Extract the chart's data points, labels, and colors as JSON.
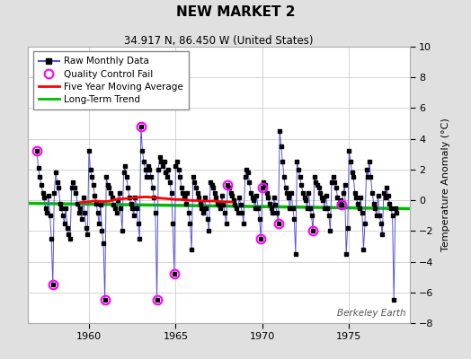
{
  "title": "NEW MARKET 2",
  "subtitle": "34.917 N, 86.450 W (United States)",
  "ylabel": "Temperature Anomaly (°C)",
  "watermark": "Berkeley Earth",
  "ylim": [
    -8,
    10
  ],
  "xlim": [
    1956.5,
    1978.5
  ],
  "xticks": [
    1960,
    1965,
    1970,
    1975
  ],
  "yticks": [
    -8,
    -6,
    -4,
    -2,
    0,
    2,
    4,
    6,
    8,
    10
  ],
  "bg_color": "#e0e0e0",
  "plot_bg_color": "#ffffff",
  "monthly_color": "#5555dd",
  "marker_color": "#000000",
  "qc_color": "#ff00ff",
  "moving_avg_color": "#ff0000",
  "trend_color": "#00bb00",
  "raw_monthly": [
    [
      1957.0,
      3.2
    ],
    [
      1957.083,
      2.1
    ],
    [
      1957.167,
      1.5
    ],
    [
      1957.25,
      1.0
    ],
    [
      1957.333,
      0.5
    ],
    [
      1957.417,
      0.2
    ],
    [
      1957.5,
      -0.5
    ],
    [
      1957.583,
      -0.8
    ],
    [
      1957.667,
      0.3
    ],
    [
      1957.75,
      -1.0
    ],
    [
      1957.833,
      -2.5
    ],
    [
      1957.917,
      -5.5
    ],
    [
      1958.0,
      0.5
    ],
    [
      1958.083,
      1.8
    ],
    [
      1958.167,
      1.2
    ],
    [
      1958.25,
      0.8
    ],
    [
      1958.333,
      -0.2
    ],
    [
      1958.417,
      -0.5
    ],
    [
      1958.5,
      -1.0
    ],
    [
      1958.583,
      -1.5
    ],
    [
      1958.667,
      -0.5
    ],
    [
      1958.75,
      -1.8
    ],
    [
      1958.833,
      -2.2
    ],
    [
      1958.917,
      -2.5
    ],
    [
      1959.0,
      0.8
    ],
    [
      1959.083,
      1.2
    ],
    [
      1959.167,
      0.8
    ],
    [
      1959.25,
      0.5
    ],
    [
      1959.333,
      -0.2
    ],
    [
      1959.417,
      -0.8
    ],
    [
      1959.5,
      -0.5
    ],
    [
      1959.583,
      -1.2
    ],
    [
      1959.667,
      0.2
    ],
    [
      1959.75,
      -0.8
    ],
    [
      1959.833,
      -1.8
    ],
    [
      1959.917,
      -2.2
    ],
    [
      1960.0,
      3.2
    ],
    [
      1960.083,
      2.0
    ],
    [
      1960.167,
      1.5
    ],
    [
      1960.25,
      1.0
    ],
    [
      1960.333,
      0.3
    ],
    [
      1960.417,
      -0.2
    ],
    [
      1960.5,
      -0.8
    ],
    [
      1960.583,
      -1.5
    ],
    [
      1960.667,
      -0.3
    ],
    [
      1960.75,
      -2.0
    ],
    [
      1960.833,
      -2.8
    ],
    [
      1960.917,
      -6.5
    ],
    [
      1961.0,
      1.5
    ],
    [
      1961.083,
      1.0
    ],
    [
      1961.167,
      0.8
    ],
    [
      1961.25,
      0.5
    ],
    [
      1961.333,
      0.2
    ],
    [
      1961.417,
      -0.3
    ],
    [
      1961.5,
      -0.5
    ],
    [
      1961.583,
      -0.8
    ],
    [
      1961.667,
      0.0
    ],
    [
      1961.75,
      0.5
    ],
    [
      1961.833,
      -0.5
    ],
    [
      1961.917,
      -2.0
    ],
    [
      1962.0,
      1.8
    ],
    [
      1962.083,
      2.2
    ],
    [
      1962.167,
      1.5
    ],
    [
      1962.25,
      0.8
    ],
    [
      1962.333,
      0.2
    ],
    [
      1962.417,
      -0.2
    ],
    [
      1962.5,
      -0.5
    ],
    [
      1962.583,
      -1.0
    ],
    [
      1962.667,
      0.2
    ],
    [
      1962.75,
      -0.5
    ],
    [
      1962.833,
      -1.5
    ],
    [
      1962.917,
      -2.5
    ],
    [
      1963.0,
      4.8
    ],
    [
      1963.083,
      3.2
    ],
    [
      1963.167,
      2.5
    ],
    [
      1963.25,
      2.0
    ],
    [
      1963.333,
      1.5
    ],
    [
      1963.417,
      2.2
    ],
    [
      1963.5,
      2.0
    ],
    [
      1963.583,
      1.5
    ],
    [
      1963.667,
      0.8
    ],
    [
      1963.75,
      0.2
    ],
    [
      1963.833,
      -0.8
    ],
    [
      1963.917,
      -6.5
    ],
    [
      1964.0,
      2.0
    ],
    [
      1964.083,
      2.8
    ],
    [
      1964.167,
      2.5
    ],
    [
      1964.25,
      2.2
    ],
    [
      1964.333,
      2.5
    ],
    [
      1964.417,
      1.8
    ],
    [
      1964.5,
      1.5
    ],
    [
      1964.583,
      2.0
    ],
    [
      1964.667,
      1.2
    ],
    [
      1964.75,
      0.5
    ],
    [
      1964.833,
      -1.5
    ],
    [
      1964.917,
      -4.8
    ],
    [
      1965.0,
      2.2
    ],
    [
      1965.083,
      2.5
    ],
    [
      1965.167,
      2.0
    ],
    [
      1965.25,
      1.5
    ],
    [
      1965.333,
      0.8
    ],
    [
      1965.417,
      0.5
    ],
    [
      1965.5,
      0.2
    ],
    [
      1965.583,
      -0.2
    ],
    [
      1965.667,
      0.5
    ],
    [
      1965.75,
      -0.8
    ],
    [
      1965.833,
      -1.5
    ],
    [
      1965.917,
      -3.2
    ],
    [
      1966.0,
      1.5
    ],
    [
      1966.083,
      1.2
    ],
    [
      1966.167,
      0.8
    ],
    [
      1966.25,
      0.5
    ],
    [
      1966.333,
      0.2
    ],
    [
      1966.417,
      -0.2
    ],
    [
      1966.5,
      -0.5
    ],
    [
      1966.583,
      -0.8
    ],
    [
      1966.667,
      0.2
    ],
    [
      1966.75,
      -0.5
    ],
    [
      1966.833,
      -1.2
    ],
    [
      1966.917,
      -2.0
    ],
    [
      1967.0,
      1.2
    ],
    [
      1967.083,
      1.0
    ],
    [
      1967.167,
      0.8
    ],
    [
      1967.25,
      0.5
    ],
    [
      1967.333,
      0.2
    ],
    [
      1967.417,
      -0.2
    ],
    [
      1967.5,
      -0.3
    ],
    [
      1967.583,
      -0.5
    ],
    [
      1967.667,
      0.3
    ],
    [
      1967.75,
      -0.3
    ],
    [
      1967.833,
      -0.8
    ],
    [
      1967.917,
      -1.5
    ],
    [
      1968.0,
      1.0
    ],
    [
      1968.083,
      0.8
    ],
    [
      1968.167,
      0.5
    ],
    [
      1968.25,
      0.3
    ],
    [
      1968.333,
      0.0
    ],
    [
      1968.417,
      -0.3
    ],
    [
      1968.5,
      -0.5
    ],
    [
      1968.583,
      -0.8
    ],
    [
      1968.667,
      0.2
    ],
    [
      1968.75,
      -0.3
    ],
    [
      1968.833,
      -0.8
    ],
    [
      1968.917,
      -1.5
    ],
    [
      1969.0,
      1.5
    ],
    [
      1969.083,
      2.0
    ],
    [
      1969.167,
      1.8
    ],
    [
      1969.25,
      1.2
    ],
    [
      1969.333,
      0.5
    ],
    [
      1969.417,
      0.2
    ],
    [
      1969.5,
      0.0
    ],
    [
      1969.583,
      -0.5
    ],
    [
      1969.667,
      0.3
    ],
    [
      1969.75,
      -0.5
    ],
    [
      1969.833,
      -1.2
    ],
    [
      1969.917,
      -2.5
    ],
    [
      1970.0,
      0.8
    ],
    [
      1970.083,
      1.2
    ],
    [
      1970.167,
      1.0
    ],
    [
      1970.25,
      0.5
    ],
    [
      1970.333,
      0.2
    ],
    [
      1970.417,
      -0.2
    ],
    [
      1970.5,
      -0.5
    ],
    [
      1970.583,
      -0.8
    ],
    [
      1970.667,
      0.2
    ],
    [
      1970.75,
      -0.3
    ],
    [
      1970.833,
      -0.8
    ],
    [
      1970.917,
      -1.5
    ],
    [
      1971.0,
      4.5
    ],
    [
      1971.083,
      3.5
    ],
    [
      1971.167,
      2.5
    ],
    [
      1971.25,
      1.5
    ],
    [
      1971.333,
      0.8
    ],
    [
      1971.417,
      0.5
    ],
    [
      1971.5,
      0.2
    ],
    [
      1971.583,
      -0.5
    ],
    [
      1971.667,
      0.5
    ],
    [
      1971.75,
      -0.5
    ],
    [
      1971.833,
      -1.2
    ],
    [
      1971.917,
      -3.5
    ],
    [
      1972.0,
      2.5
    ],
    [
      1972.083,
      2.0
    ],
    [
      1972.167,
      1.5
    ],
    [
      1972.25,
      1.0
    ],
    [
      1972.333,
      0.5
    ],
    [
      1972.417,
      0.2
    ],
    [
      1972.5,
      0.0
    ],
    [
      1972.583,
      -0.5
    ],
    [
      1972.667,
      0.5
    ],
    [
      1972.75,
      -0.5
    ],
    [
      1972.833,
      -1.0
    ],
    [
      1972.917,
      -2.0
    ],
    [
      1973.0,
      1.5
    ],
    [
      1973.083,
      1.2
    ],
    [
      1973.167,
      1.0
    ],
    [
      1973.25,
      0.8
    ],
    [
      1973.333,
      0.5
    ],
    [
      1973.417,
      0.2
    ],
    [
      1973.5,
      0.0
    ],
    [
      1973.583,
      -0.5
    ],
    [
      1973.667,
      0.3
    ],
    [
      1973.75,
      -0.5
    ],
    [
      1973.833,
      -1.0
    ],
    [
      1973.917,
      -2.0
    ],
    [
      1974.0,
      1.2
    ],
    [
      1974.083,
      1.5
    ],
    [
      1974.167,
      1.2
    ],
    [
      1974.25,
      0.8
    ],
    [
      1974.333,
      0.2
    ],
    [
      1974.417,
      -0.2
    ],
    [
      1974.5,
      0.0
    ],
    [
      1974.583,
      -0.3
    ],
    [
      1974.667,
      0.5
    ],
    [
      1974.75,
      1.0
    ],
    [
      1974.833,
      -3.5
    ],
    [
      1974.917,
      -1.8
    ],
    [
      1975.0,
      3.2
    ],
    [
      1975.083,
      2.5
    ],
    [
      1975.167,
      1.8
    ],
    [
      1975.25,
      1.5
    ],
    [
      1975.333,
      0.5
    ],
    [
      1975.417,
      0.2
    ],
    [
      1975.5,
      -0.2
    ],
    [
      1975.583,
      -0.5
    ],
    [
      1975.667,
      0.2
    ],
    [
      1975.75,
      -0.8
    ],
    [
      1975.833,
      -3.2
    ],
    [
      1975.917,
      -1.5
    ],
    [
      1976.0,
      2.0
    ],
    [
      1976.083,
      1.5
    ],
    [
      1976.167,
      2.5
    ],
    [
      1976.25,
      1.5
    ],
    [
      1976.333,
      0.5
    ],
    [
      1976.417,
      -0.2
    ],
    [
      1976.5,
      -0.5
    ],
    [
      1976.583,
      -1.0
    ],
    [
      1976.667,
      0.3
    ],
    [
      1976.75,
      -1.0
    ],
    [
      1976.833,
      -1.5
    ],
    [
      1976.917,
      -2.2
    ],
    [
      1977.0,
      0.5
    ],
    [
      1977.083,
      0.2
    ],
    [
      1977.167,
      0.8
    ],
    [
      1977.25,
      0.3
    ],
    [
      1977.333,
      -0.2
    ],
    [
      1977.417,
      -0.5
    ],
    [
      1977.5,
      -1.0
    ],
    [
      1977.583,
      -6.5
    ],
    [
      1977.667,
      -0.5
    ],
    [
      1977.75,
      -0.8
    ]
  ],
  "qc_fail_indices": [
    0,
    11,
    47,
    72,
    83,
    95,
    132,
    155,
    156,
    167,
    191,
    211
  ],
  "moving_avg_start": 1959.5,
  "moving_avg_vals": [
    -0.15,
    -0.12,
    -0.1,
    -0.05,
    -0.05,
    -0.08,
    -0.08,
    -0.05,
    0.05,
    0.08,
    0.1,
    0.12,
    0.15,
    0.18,
    0.2,
    0.22,
    0.2,
    0.18,
    0.15,
    0.12,
    0.1,
    0.08,
    0.05,
    0.05,
    0.02,
    0.0,
    -0.02,
    -0.02,
    -0.05,
    -0.05,
    -0.05,
    -0.05,
    -0.08,
    -0.1,
    -0.1,
    -0.12
  ],
  "trend_x": [
    1956.5,
    1978.5
  ],
  "trend_y": [
    -0.2,
    -0.55
  ]
}
